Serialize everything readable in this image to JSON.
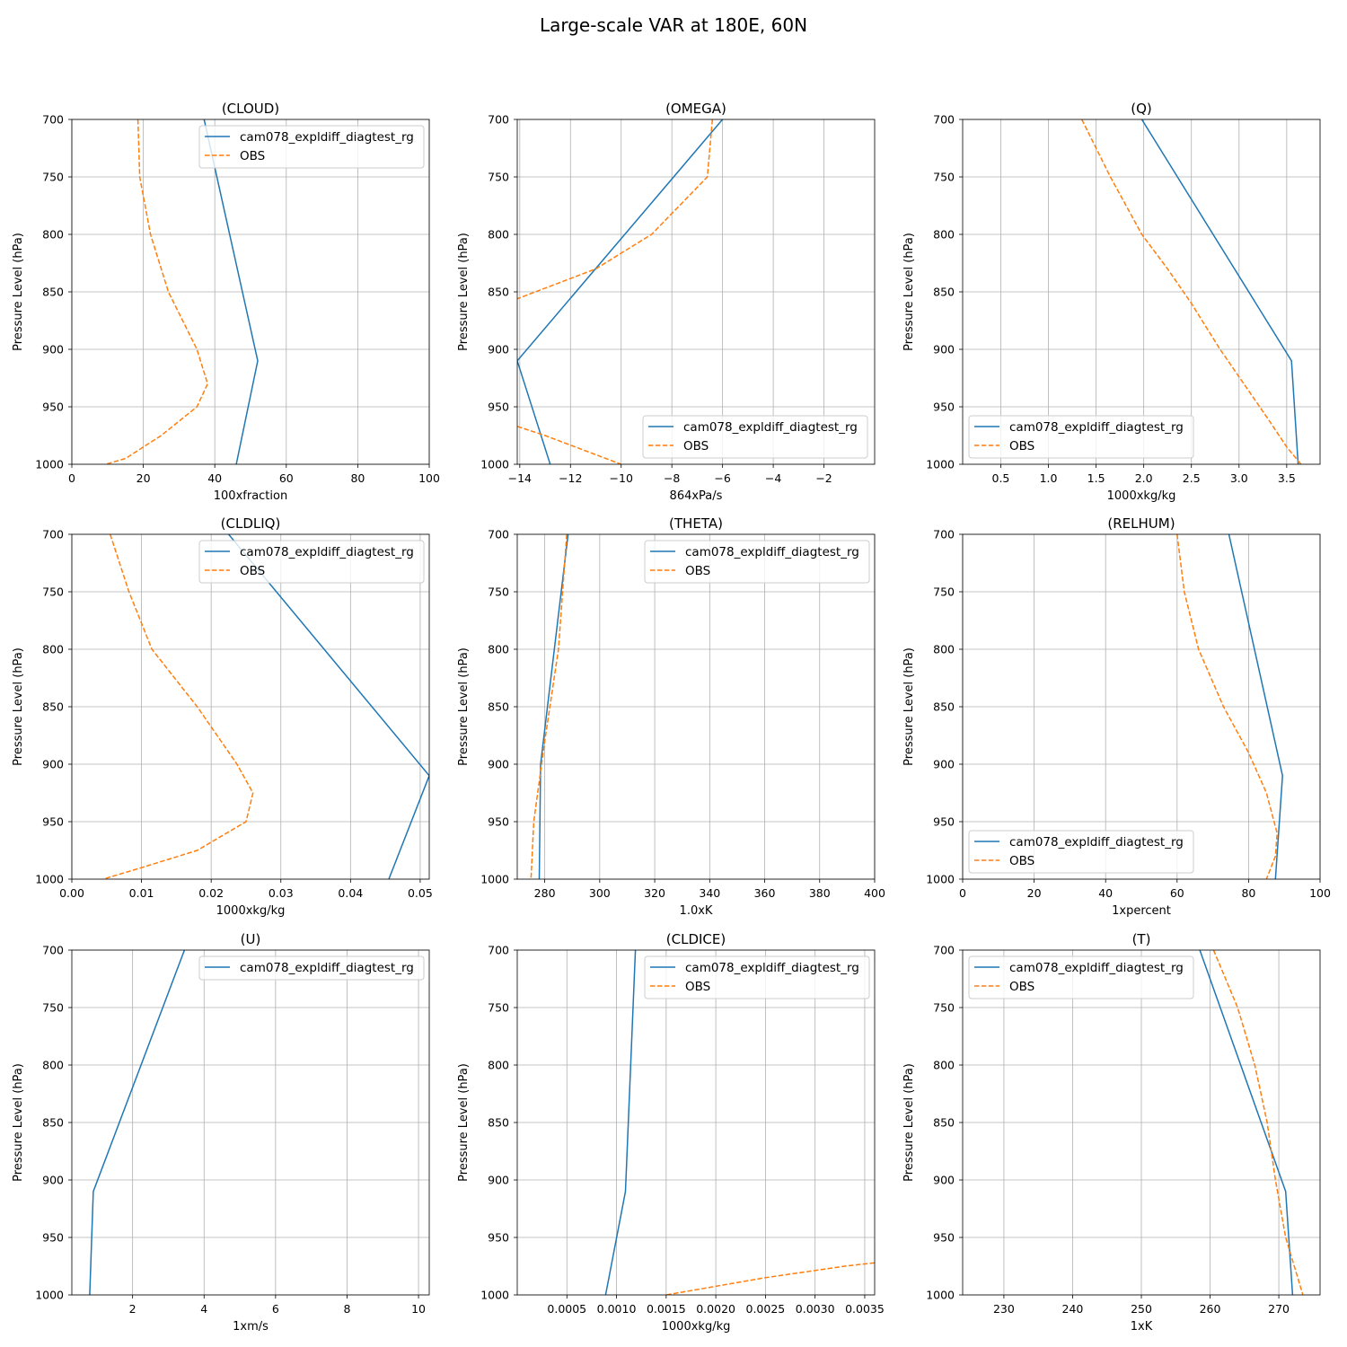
{
  "suptitle": "Large-scale VAR at 180E, 60N",
  "colors": {
    "model": "#1f77b4",
    "obs": "#ff7f0e",
    "grid": "#b0b0b0"
  },
  "legend_labels": {
    "model": "cam078_expldiff_diagtest_rg",
    "obs": "OBS"
  },
  "chart_data": [
    {
      "type": "line",
      "title": "(CLOUD)",
      "xlabel": "100xfraction",
      "ylabel": "Pressure Level (hPa)",
      "xlim": [
        0,
        100
      ],
      "ylim": [
        1000,
        700
      ],
      "xticks": [
        0,
        20,
        40,
        60,
        80,
        100
      ],
      "yticks": [
        700,
        750,
        800,
        850,
        900,
        950,
        1000
      ],
      "grid": true,
      "legend": "top-right",
      "series": [
        {
          "name": "cam078_expldiff_diagtest_rg",
          "points": [
            [
              37,
              700
            ],
            [
              52,
              910
            ],
            [
              46,
              1000
            ]
          ]
        },
        {
          "name": "OBS",
          "points": [
            [
              18.5,
              700
            ],
            [
              19,
              750
            ],
            [
              22,
              800
            ],
            [
              27,
              850
            ],
            [
              35,
              900
            ],
            [
              38,
              930
            ],
            [
              35,
              950
            ],
            [
              25,
              975
            ],
            [
              15,
              995
            ],
            [
              9.5,
              1000
            ]
          ]
        }
      ]
    },
    {
      "type": "line",
      "title": "(OMEGA)",
      "xlabel": "864xPa/s",
      "ylabel": "Pressure Level (hPa)",
      "xlim": [
        -14.1,
        0
      ],
      "ylim": [
        1000,
        700
      ],
      "xticks": [
        -14,
        -12,
        -10,
        -8,
        -6,
        -4,
        -2
      ],
      "yticks": [
        700,
        750,
        800,
        850,
        900,
        950,
        1000
      ],
      "grid": true,
      "legend": "lower-right",
      "series": [
        {
          "name": "cam078_expldiff_diagtest_rg",
          "points": [
            [
              -6.0,
              700
            ],
            [
              -14.1,
              910
            ],
            [
              -12.8,
              1000
            ]
          ]
        },
        {
          "name": "OBS",
          "points": [
            [
              -6.4,
              700
            ],
            [
              -6.6,
              750
            ],
            [
              -7.7,
              775
            ],
            [
              -8.8,
              800
            ],
            [
              -11,
              830
            ],
            [
              -14.1,
              856
            ]
          ]
        },
        {
          "name": "OBS",
          "points": [
            [
              -14.1,
              967
            ],
            [
              -13,
              975
            ],
            [
              -10.0,
              1000
            ]
          ]
        }
      ]
    },
    {
      "type": "line",
      "title": "(Q)",
      "xlabel": "1000xkg/kg",
      "ylabel": "Pressure Level (hPa)",
      "xlim": [
        0.1,
        3.85
      ],
      "ylim": [
        1000,
        700
      ],
      "xticks": [
        0.5,
        1.0,
        1.5,
        2.0,
        2.5,
        3.0,
        3.5
      ],
      "yticks": [
        700,
        750,
        800,
        850,
        900,
        950,
        1000
      ],
      "grid": true,
      "legend": "lower-left",
      "series": [
        {
          "name": "cam078_expldiff_diagtest_rg",
          "points": [
            [
              1.98,
              700
            ],
            [
              3.55,
              910
            ],
            [
              3.62,
              1000
            ]
          ]
        },
        {
          "name": "OBS",
          "points": [
            [
              1.35,
              700
            ],
            [
              1.65,
              750
            ],
            [
              1.98,
              800
            ],
            [
              2.25,
              830
            ],
            [
              2.5,
              860
            ],
            [
              2.8,
              900
            ],
            [
              3.05,
              930
            ],
            [
              3.3,
              960
            ],
            [
              3.5,
              985
            ],
            [
              3.65,
              1000
            ]
          ]
        }
      ]
    },
    {
      "type": "line",
      "title": "(CLDLIQ)",
      "xlabel": "1000xkg/kg",
      "ylabel": "Pressure Level (hPa)",
      "xlim": [
        0,
        0.0513
      ],
      "ylim": [
        1000,
        700
      ],
      "xticks": [
        0.0,
        0.01,
        0.02,
        0.03,
        0.04,
        0.05
      ],
      "yticks": [
        700,
        750,
        800,
        850,
        900,
        950,
        1000
      ],
      "grid": true,
      "legend": "top-right",
      "series": [
        {
          "name": "cam078_expldiff_diagtest_rg",
          "points": [
            [
              0.0225,
              700
            ],
            [
              0.0513,
              910
            ],
            [
              0.0455,
              1000
            ]
          ]
        },
        {
          "name": "OBS",
          "points": [
            [
              0.0055,
              700
            ],
            [
              0.0082,
              750
            ],
            [
              0.0115,
              800
            ],
            [
              0.018,
              850
            ],
            [
              0.0237,
              900
            ],
            [
              0.026,
              925
            ],
            [
              0.025,
              950
            ],
            [
              0.018,
              975
            ],
            [
              0.01,
              990
            ],
            [
              0.0045,
              1000
            ]
          ]
        }
      ]
    },
    {
      "type": "line",
      "title": "(THETA)",
      "xlabel": "1.0xK",
      "ylabel": "Pressure Level (hPa)",
      "xlim": [
        270,
        400
      ],
      "ylim": [
        1000,
        700
      ],
      "xticks": [
        280,
        300,
        320,
        340,
        360,
        380,
        400
      ],
      "yticks": [
        700,
        750,
        800,
        850,
        900,
        950,
        1000
      ],
      "grid": true,
      "legend": "top-right",
      "series": [
        {
          "name": "cam078_expldiff_diagtest_rg",
          "points": [
            [
              288.5,
              700
            ],
            [
              278.5,
              900
            ],
            [
              278,
              1000
            ]
          ]
        },
        {
          "name": "OBS",
          "points": [
            [
              288,
              700
            ],
            [
              285,
              800
            ],
            [
              280,
              880
            ],
            [
              276,
              950
            ],
            [
              275,
              1000
            ]
          ]
        }
      ]
    },
    {
      "type": "line",
      "title": "(RELHUM)",
      "xlabel": "1xpercent",
      "ylabel": "Pressure Level (hPa)",
      "xlim": [
        0,
        100
      ],
      "ylim": [
        1000,
        700
      ],
      "xticks": [
        0,
        20,
        40,
        60,
        80,
        100
      ],
      "yticks": [
        700,
        750,
        800,
        850,
        900,
        950,
        1000
      ],
      "grid": true,
      "legend": "lower-left",
      "series": [
        {
          "name": "cam078_expldiff_diagtest_rg",
          "points": [
            [
              74.5,
              700
            ],
            [
              89.5,
              910
            ],
            [
              87.5,
              1000
            ]
          ]
        },
        {
          "name": "OBS",
          "points": [
            [
              60,
              700
            ],
            [
              62,
              750
            ],
            [
              66,
              800
            ],
            [
              73,
              850
            ],
            [
              80,
              890
            ],
            [
              85,
              925
            ],
            [
              88,
              960
            ],
            [
              87.5,
              980
            ],
            [
              85,
              1000
            ]
          ]
        }
      ]
    },
    {
      "type": "line",
      "title": "(U)",
      "xlabel": "1xm/s",
      "ylabel": "Pressure Level (hPa)",
      "xlim": [
        0.3,
        10.3
      ],
      "ylim": [
        1000,
        700
      ],
      "xticks": [
        2,
        4,
        6,
        8,
        10
      ],
      "yticks": [
        700,
        750,
        800,
        850,
        900,
        950,
        1000
      ],
      "grid": true,
      "legend": "top-right",
      "series": [
        {
          "name": "cam078_expldiff_diagtest_rg",
          "points": [
            [
              3.45,
              700
            ],
            [
              0.9,
              910
            ],
            [
              0.8,
              1000
            ]
          ]
        }
      ]
    },
    {
      "type": "line",
      "title": "(CLDICE)",
      "xlabel": "1000xkg/kg",
      "ylabel": "Pressure Level (hPa)",
      "xlim": [
        0,
        0.0036
      ],
      "ylim": [
        1000,
        700
      ],
      "xticks": [
        0.0005,
        0.001,
        0.0015,
        0.002,
        0.0025,
        0.003,
        0.0035
      ],
      "yticks": [
        700,
        750,
        800,
        850,
        900,
        950,
        1000
      ],
      "grid": true,
      "legend": "top-right",
      "series": [
        {
          "name": "cam078_expldiff_diagtest_rg",
          "points": [
            [
              0.00119,
              700
            ],
            [
              0.00109,
              910
            ],
            [
              0.00089,
              1000
            ]
          ]
        },
        {
          "name": "OBS",
          "points": [
            [
              0.0036,
              972
            ],
            [
              0.0033,
              975
            ],
            [
              0.0025,
              985
            ],
            [
              0.0015,
              1000
            ]
          ]
        }
      ]
    },
    {
      "type": "line",
      "title": "(T)",
      "xlabel": "1xK",
      "ylabel": "Pressure Level (hPa)",
      "xlim": [
        224,
        276
      ],
      "ylim": [
        1000,
        700
      ],
      "xticks": [
        230,
        240,
        250,
        260,
        270
      ],
      "yticks": [
        700,
        750,
        800,
        850,
        900,
        950,
        1000
      ],
      "grid": true,
      "legend": "top-left",
      "series": [
        {
          "name": "cam078_expldiff_diagtest_rg",
          "points": [
            [
              258.5,
              700
            ],
            [
              271,
              910
            ],
            [
              272,
              1000
            ]
          ]
        },
        {
          "name": "OBS",
          "points": [
            [
              260.5,
              700
            ],
            [
              264,
              750
            ],
            [
              266.5,
              800
            ],
            [
              268.3,
              850
            ],
            [
              269.5,
              900
            ],
            [
              271,
              950
            ],
            [
              273.5,
              1000
            ]
          ]
        }
      ]
    }
  ]
}
